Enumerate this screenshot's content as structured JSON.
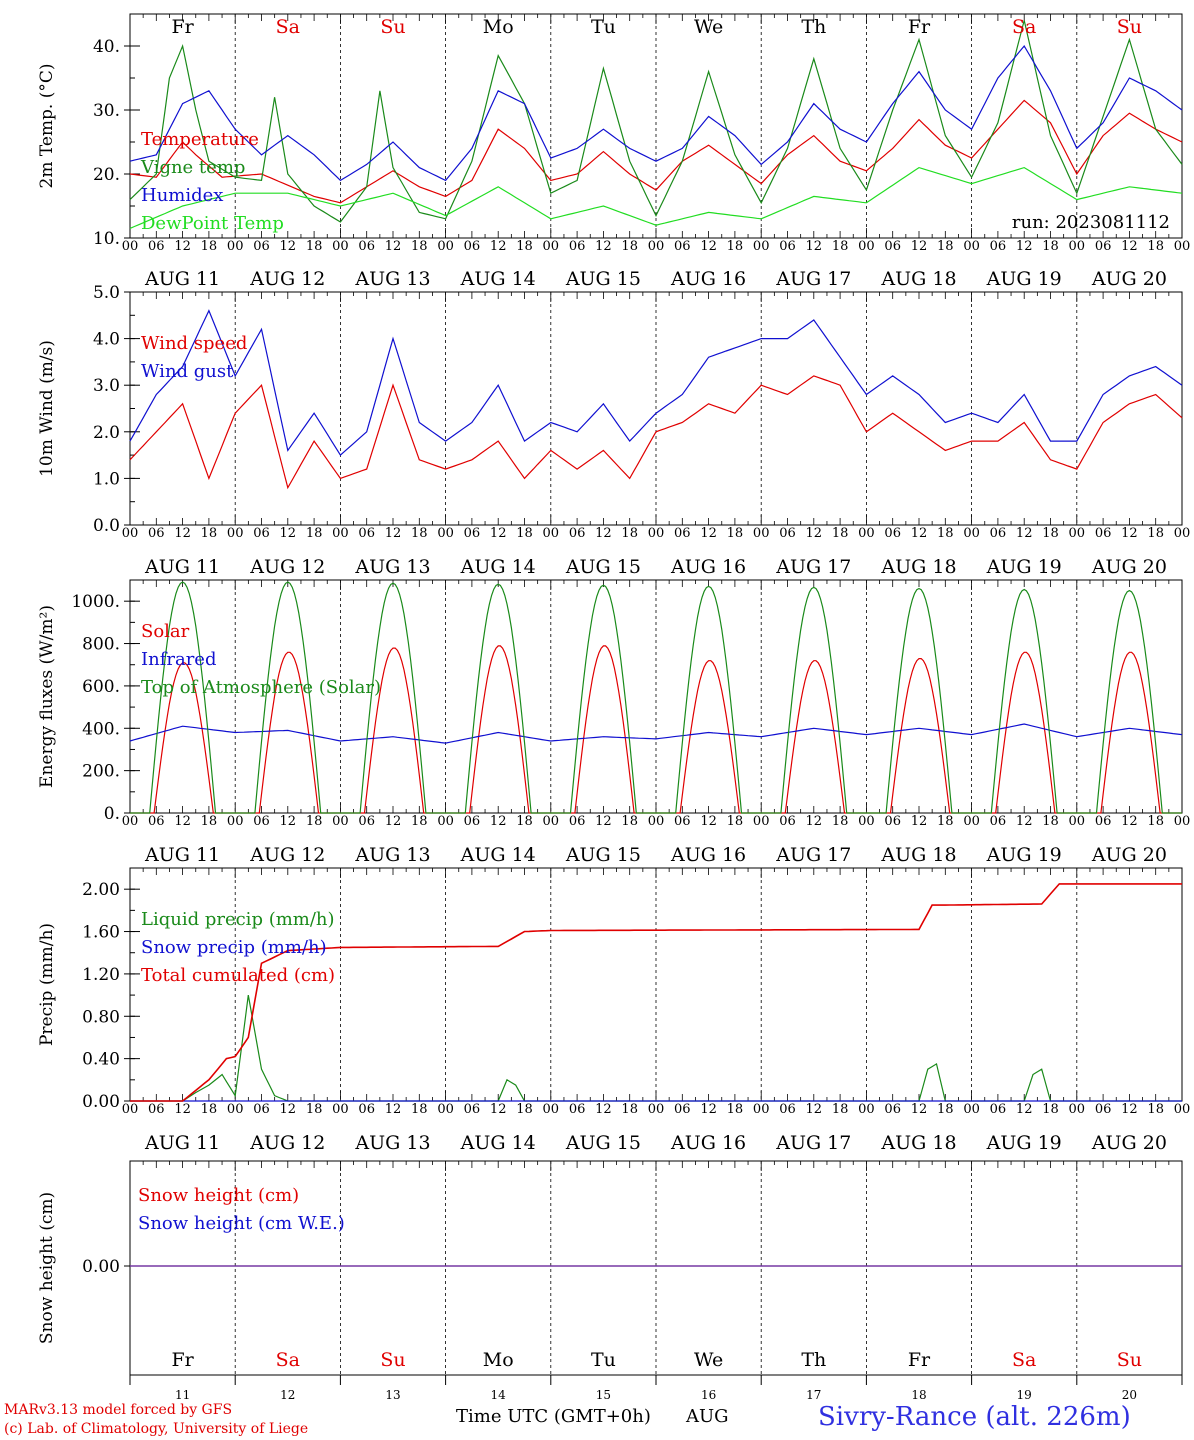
{
  "days": [
    "Fr",
    "Sa",
    "Su",
    "Mo",
    "Tu",
    "We",
    "Th",
    "Fr",
    "Sa",
    "Su"
  ],
  "dates": [
    "AUG 11",
    "AUG 12",
    "AUG 13",
    "AUG 14",
    "AUG 15",
    "AUG 16",
    "AUG 17",
    "AUG 18",
    "AUG 19",
    "AUG 20"
  ],
  "day_numbers": [
    "11",
    "12",
    "13",
    "14",
    "15",
    "16",
    "17",
    "18",
    "19",
    "20"
  ],
  "hour_ticks": [
    "00",
    "06",
    "12",
    "18"
  ],
  "final_hour_tick": "00",
  "colors": {
    "weekday": "#000000",
    "weekend": "#e00000",
    "red": "#e00000",
    "green": "#1a8a1a",
    "blue": "#1010d0",
    "lightgreen": "#22dd22",
    "purple": "#7030a0"
  },
  "weekend_index": [
    1,
    2,
    8,
    9
  ],
  "footer": {
    "model": "MARv3.13 model forced by GFS",
    "lab": "(c) Lab. of Climatology, University of Liege",
    "xlabel": "Time UTC (GMT+0h)",
    "month": "AUG",
    "station": "Sivry-Rance (alt. 226m)"
  },
  "chart_data": [
    {
      "type": "line",
      "ylabel": "2m Temp. (°C)",
      "ylim": [
        10,
        45
      ],
      "yticks": [
        10,
        20,
        30,
        40
      ],
      "ytick_labels": [
        "10.",
        "20.",
        "30.",
        "40."
      ],
      "run_label": "run: 2023081112",
      "x_unit": "hours since 2023-08-11 00 UTC",
      "series": [
        {
          "name": "Temperature",
          "color": "red",
          "x": [
            0,
            6,
            12,
            15,
            21,
            30,
            42,
            48,
            54,
            60,
            66,
            72,
            78,
            84,
            90,
            96,
            102,
            108,
            114,
            120,
            126,
            132,
            138,
            144,
            150,
            156,
            162,
            168,
            174,
            180,
            186,
            192,
            198,
            204,
            210,
            216,
            222,
            228,
            234,
            240
          ],
          "values": [
            20,
            19.5,
            25,
            23,
            19.5,
            20,
            16.5,
            15.5,
            18,
            20.5,
            18,
            16.5,
            19,
            27,
            24,
            19,
            20,
            23.5,
            20,
            17.5,
            22,
            24.5,
            21.5,
            18.5,
            23,
            26,
            22,
            20.5,
            24,
            28.5,
            24.5,
            22.5,
            27,
            31.5,
            28,
            20,
            26,
            29.5,
            27,
            25
          ]
        },
        {
          "name": "Vigne temp",
          "color": "green",
          "x": [
            0,
            6,
            9,
            12,
            15,
            18,
            24,
            30,
            33,
            36,
            42,
            48,
            54,
            57,
            60,
            66,
            72,
            78,
            84,
            90,
            96,
            102,
            108,
            114,
            120,
            126,
            132,
            138,
            144,
            150,
            156,
            162,
            168,
            174,
            180,
            186,
            192,
            198,
            204,
            210,
            216,
            222,
            228,
            234,
            240
          ],
          "values": [
            16,
            20,
            35,
            40,
            30,
            22,
            19.5,
            19,
            32,
            20,
            15,
            12.5,
            18,
            33,
            21,
            14,
            13,
            22,
            38.5,
            31,
            17,
            19,
            36.5,
            22,
            13.5,
            22,
            36,
            23,
            15.5,
            24,
            38,
            24,
            17.5,
            30,
            41,
            26,
            19.5,
            28,
            44,
            26,
            17,
            29,
            41,
            27,
            21.5
          ]
        },
        {
          "name": "Humidex",
          "color": "blue",
          "x": [
            0,
            6,
            12,
            18,
            24,
            30,
            36,
            42,
            48,
            54,
            60,
            66,
            72,
            78,
            84,
            90,
            96,
            102,
            108,
            114,
            120,
            126,
            132,
            138,
            144,
            150,
            156,
            162,
            168,
            174,
            180,
            186,
            192,
            198,
            204,
            210,
            216,
            222,
            228,
            234,
            240
          ],
          "values": [
            22,
            23,
            31,
            33,
            27,
            23,
            26,
            23,
            19,
            21.5,
            25,
            21,
            19,
            24,
            33,
            31,
            22.5,
            24,
            27,
            24,
            22,
            24,
            29,
            26,
            21.5,
            25,
            31,
            27,
            25,
            31,
            36,
            30,
            27,
            35,
            40,
            33,
            24,
            28,
            35,
            33,
            30
          ]
        },
        {
          "name": "DewPoint Temp",
          "color": "lightgreen",
          "x": [
            0,
            12,
            24,
            36,
            48,
            60,
            72,
            84,
            96,
            108,
            120,
            132,
            144,
            156,
            168,
            180,
            192,
            204,
            216,
            228,
            240
          ],
          "values": [
            11.5,
            15,
            17,
            17,
            15,
            17,
            13.5,
            18,
            13,
            15,
            12,
            14,
            13,
            16.5,
            15.5,
            21,
            18.5,
            21,
            16,
            18,
            17
          ]
        }
      ]
    },
    {
      "type": "line",
      "ylabel": "10m Wind (m/s)",
      "ylim": [
        0,
        5
      ],
      "yticks": [
        0,
        1,
        2,
        3,
        4,
        5
      ],
      "ytick_labels": [
        "0.0",
        "1.0",
        "2.0",
        "3.0",
        "4.0",
        "5.0"
      ],
      "x_unit": "hours since 2023-08-11 00 UTC",
      "series": [
        {
          "name": "Wind speed",
          "color": "red",
          "x": [
            0,
            6,
            12,
            18,
            24,
            30,
            36,
            42,
            48,
            54,
            60,
            66,
            72,
            78,
            84,
            90,
            96,
            102,
            108,
            114,
            120,
            126,
            132,
            138,
            144,
            150,
            156,
            162,
            168,
            174,
            180,
            186,
            192,
            198,
            204,
            210,
            216,
            222,
            228,
            234,
            240
          ],
          "values": [
            1.4,
            2.0,
            2.6,
            1.0,
            2.4,
            3.0,
            0.8,
            1.8,
            1.0,
            1.2,
            3.0,
            1.4,
            1.2,
            1.4,
            1.8,
            1.0,
            1.6,
            1.2,
            1.6,
            1.0,
            2.0,
            2.2,
            2.6,
            2.4,
            3.0,
            2.8,
            3.2,
            3.0,
            2.0,
            2.4,
            2.0,
            1.6,
            1.8,
            1.8,
            2.2,
            1.4,
            1.2,
            2.2,
            2.6,
            2.8,
            2.3
          ]
        },
        {
          "name": "Wind gust",
          "color": "blue",
          "x": [
            0,
            6,
            12,
            18,
            24,
            30,
            36,
            42,
            48,
            54,
            60,
            66,
            72,
            78,
            84,
            90,
            96,
            102,
            108,
            114,
            120,
            126,
            132,
            138,
            144,
            150,
            156,
            162,
            168,
            174,
            180,
            186,
            192,
            198,
            204,
            210,
            216,
            222,
            228,
            234,
            240
          ],
          "values": [
            1.8,
            2.8,
            3.4,
            4.6,
            3.2,
            4.2,
            1.6,
            2.4,
            1.5,
            2.0,
            4.0,
            2.2,
            1.8,
            2.2,
            3.0,
            1.8,
            2.2,
            2.0,
            2.6,
            1.8,
            2.4,
            2.8,
            3.6,
            3.8,
            4.0,
            4.0,
            4.4,
            3.6,
            2.8,
            3.2,
            2.8,
            2.2,
            2.4,
            2.2,
            2.8,
            1.8,
            1.8,
            2.8,
            3.2,
            3.4,
            3.0
          ]
        }
      ]
    },
    {
      "type": "line",
      "ylabel": "Energy fluxes (W/m²)",
      "ylim": [
        0,
        1100
      ],
      "yticks": [
        0,
        200,
        400,
        600,
        800,
        1000
      ],
      "ytick_labels": [
        "0.",
        "200.",
        "400.",
        "600.",
        "800.",
        "1000."
      ],
      "x_unit": "hours since 2023-08-11 00 UTC",
      "series": [
        {
          "name": "Solar",
          "color": "red",
          "daily_peak": [
            710,
            760,
            780,
            790,
            790,
            720,
            720,
            730,
            760,
            760
          ]
        },
        {
          "name": "Infrared",
          "color": "blue",
          "x": [
            0,
            12,
            24,
            36,
            48,
            60,
            72,
            84,
            96,
            108,
            120,
            132,
            144,
            156,
            168,
            180,
            192,
            204,
            216,
            228,
            240
          ],
          "values": [
            340,
            410,
            380,
            390,
            340,
            360,
            330,
            380,
            340,
            360,
            350,
            380,
            360,
            400,
            370,
            400,
            370,
            420,
            360,
            400,
            370
          ]
        },
        {
          "name": "Top of Atmosphere (Solar)",
          "color": "green",
          "daily_peak": [
            1090,
            1090,
            1085,
            1080,
            1075,
            1070,
            1065,
            1060,
            1055,
            1050
          ]
        }
      ]
    },
    {
      "type": "line",
      "ylabel": "Precip (mm/h)",
      "ylim": [
        0,
        2.2
      ],
      "yticks": [
        0,
        0.4,
        0.8,
        1.2,
        1.6,
        2.0
      ],
      "ytick_labels": [
        "0.00",
        "0.40",
        "0.80",
        "1.20",
        "1.60",
        "2.00"
      ],
      "x_unit": "hours since 2023-08-11 00 UTC",
      "series": [
        {
          "name": "Liquid precip (mm/h)",
          "color": "green",
          "x": [
            0,
            12,
            15,
            18,
            21,
            24,
            27,
            30,
            33,
            36,
            84,
            86,
            88,
            90,
            180,
            182,
            184,
            186,
            204,
            206,
            208,
            210,
            240
          ],
          "values": [
            0,
            0,
            0.08,
            0.15,
            0.25,
            0.05,
            1.0,
            0.3,
            0.05,
            0,
            0,
            0.2,
            0.15,
            0,
            0,
            0.3,
            0.35,
            0,
            0,
            0.25,
            0.3,
            0,
            0
          ]
        },
        {
          "name": "Snow precip (mm/h)",
          "color": "blue",
          "x": [
            0,
            240
          ],
          "values": [
            0,
            0
          ]
        },
        {
          "name": "Total cumulated (cm)",
          "color": "red",
          "x": [
            0,
            12,
            18,
            22,
            24,
            27,
            30,
            36,
            48,
            84,
            90,
            96,
            180,
            183,
            186,
            208,
            212,
            240
          ],
          "values": [
            0,
            0,
            0.2,
            0.4,
            0.42,
            0.6,
            1.3,
            1.42,
            1.45,
            1.46,
            1.6,
            1.61,
            1.62,
            1.85,
            1.85,
            1.86,
            2.05,
            2.05
          ]
        }
      ]
    },
    {
      "type": "line",
      "ylabel": "Snow height (cm)",
      "yticks": [
        0
      ],
      "ytick_labels": [
        "0.00"
      ],
      "x_unit": "hours since 2023-08-11 00 UTC",
      "series": [
        {
          "name": "Snow height (cm)",
          "color": "red",
          "x": [
            0,
            240
          ],
          "values": [
            0,
            0
          ]
        },
        {
          "name": "Snow height (cm W.E.)",
          "color": "blue",
          "x": [
            0,
            240
          ],
          "values": [
            0,
            0
          ]
        }
      ]
    }
  ]
}
